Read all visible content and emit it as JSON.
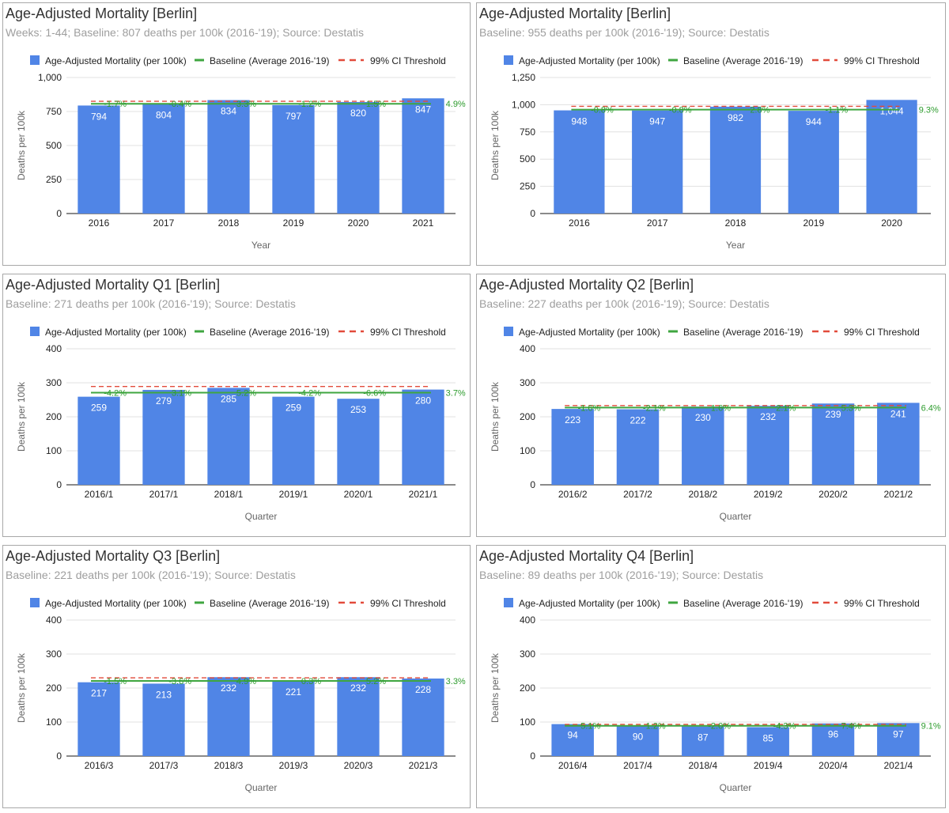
{
  "legend": {
    "series": "Age-Adjusted Mortality (per 100k)",
    "baseline": "Baseline (Average 2016-'19)",
    "ci": "99% CI Threshold"
  },
  "colors": {
    "bar": "#5085e6",
    "baseline": "#3fa640",
    "ci": "#e24b3b",
    "grid": "#e0e0e0",
    "axis": "#444444",
    "pct": "#2e9c2e"
  },
  "chart_data": [
    {
      "type": "bar",
      "title": "Age-Adjusted Mortality [Berlin]",
      "subtitle": "Weeks: 1-44; Baseline: 807 deaths per 100k (2016-'19); Source: Destatis",
      "xlabel": "Year",
      "ylabel": "Deaths per 100k",
      "ylim": [
        0,
        1000
      ],
      "yticks": [
        0,
        250,
        500,
        750,
        1000
      ],
      "ytick_labels": [
        "0",
        "250",
        "500",
        "750",
        "1,000"
      ],
      "categories": [
        "2016",
        "2017",
        "2018",
        "2019",
        "2020",
        "2021"
      ],
      "values": [
        794,
        804,
        834,
        797,
        820,
        847
      ],
      "value_labels": [
        "794",
        "804",
        "834",
        "797",
        "820",
        "847"
      ],
      "pct_labels": [
        "-1.7%",
        "-0.4%",
        "3.3%",
        "-1.2%",
        "1.5%",
        "4.9%"
      ],
      "baseline": 807,
      "ci_threshold": 825,
      "legend_position": "top"
    },
    {
      "type": "bar",
      "title": "Age-Adjusted Mortality [Berlin]",
      "subtitle": "Baseline: 955 deaths per 100k (2016-'19); Source: Destatis",
      "xlabel": "Year",
      "ylabel": "Deaths per 100k",
      "ylim": [
        0,
        1250
      ],
      "yticks": [
        0,
        250,
        500,
        750,
        1000,
        1250
      ],
      "ytick_labels": [
        "0",
        "250",
        "500",
        "750",
        "1,000",
        "1,250"
      ],
      "categories": [
        "2016",
        "2017",
        "2018",
        "2019",
        "2020"
      ],
      "values": [
        948,
        947,
        982,
        944,
        1044
      ],
      "value_labels": [
        "948",
        "947",
        "982",
        "944",
        "1,044"
      ],
      "pct_labels": [
        "-0.8%",
        "-0.8%",
        "2.8%",
        "-1.1%",
        "9.3%"
      ],
      "baseline": 955,
      "ci_threshold": 985,
      "legend_position": "top"
    },
    {
      "type": "bar",
      "title": "Age-Adjusted Mortality Q1 [Berlin]",
      "subtitle": "Baseline: 271 deaths per 100k (2016-'19); Source: Destatis",
      "xlabel": "Quarter",
      "ylabel": "Deaths per 100k",
      "ylim": [
        0,
        400
      ],
      "yticks": [
        0,
        100,
        200,
        300,
        400
      ],
      "ytick_labels": [
        "0",
        "100",
        "200",
        "300",
        "400"
      ],
      "categories": [
        "2016/1",
        "2017/1",
        "2018/1",
        "2019/1",
        "2020/1",
        "2021/1"
      ],
      "values": [
        259,
        279,
        285,
        259,
        253,
        280
      ],
      "value_labels": [
        "259",
        "279",
        "285",
        "259",
        "253",
        "280"
      ],
      "pct_labels": [
        "-4.2%",
        "3.1%",
        "5.2%",
        "-4.2%",
        "-6.6%",
        "3.7%"
      ],
      "baseline": 271,
      "ci_threshold": 289,
      "legend_position": "top"
    },
    {
      "type": "bar",
      "title": "Age-Adjusted Mortality Q2 [Berlin]",
      "subtitle": "Baseline: 227 deaths per 100k (2016-'19); Source: Destatis",
      "xlabel": "Quarter",
      "ylabel": "Deaths per 100k",
      "ylim": [
        0,
        400
      ],
      "yticks": [
        0,
        100,
        200,
        300,
        400
      ],
      "ytick_labels": [
        "0",
        "100",
        "200",
        "300",
        "400"
      ],
      "categories": [
        "2016/2",
        "2017/2",
        "2018/2",
        "2019/2",
        "2020/2",
        "2021/2"
      ],
      "values": [
        223,
        222,
        230,
        232,
        239,
        241
      ],
      "value_labels": [
        "223",
        "222",
        "230",
        "232",
        "239",
        "241"
      ],
      "pct_labels": [
        "-1.6%",
        "-2.1%",
        "1.6%",
        "2.1%",
        "5.3%",
        "6.4%"
      ],
      "baseline": 227,
      "ci_threshold": 233,
      "legend_position": "top"
    },
    {
      "type": "bar",
      "title": "Age-Adjusted Mortality Q3 [Berlin]",
      "subtitle": "Baseline: 221 deaths per 100k (2016-'19); Source: Destatis",
      "xlabel": "Quarter",
      "ylabel": "Deaths per 100k",
      "ylim": [
        0,
        400
      ],
      "yticks": [
        0,
        100,
        200,
        300,
        400
      ],
      "ytick_labels": [
        "0",
        "100",
        "200",
        "300",
        "400"
      ],
      "categories": [
        "2016/3",
        "2017/3",
        "2018/3",
        "2019/3",
        "2020/3",
        "2021/3"
      ],
      "values": [
        217,
        213,
        232,
        221,
        232,
        228
      ],
      "value_labels": [
        "217",
        "213",
        "232",
        "221",
        "232",
        "228"
      ],
      "pct_labels": [
        "-1.5%",
        "-3.6%",
        "4.9%",
        "0.3%",
        "5.2%",
        "3.3%"
      ],
      "baseline": 221,
      "ci_threshold": 230,
      "legend_position": "top"
    },
    {
      "type": "bar",
      "title": "Age-Adjusted Mortality Q4 [Berlin]",
      "subtitle": "Baseline: 89 deaths per 100k (2016-'19); Source: Destatis",
      "xlabel": "Quarter",
      "ylabel": "Deaths per 100k",
      "ylim": [
        0,
        400
      ],
      "yticks": [
        0,
        100,
        200,
        300,
        400
      ],
      "ytick_labels": [
        "0",
        "100",
        "200",
        "300",
        "400"
      ],
      "categories": [
        "2016/4",
        "2017/4",
        "2018/4",
        "2019/4",
        "2020/4",
        "2021/4"
      ],
      "values": [
        94,
        90,
        87,
        85,
        96,
        97
      ],
      "value_labels": [
        "94",
        "90",
        "87",
        "85",
        "96",
        "97"
      ],
      "pct_labels": [
        "5.1%",
        "1.2%",
        "-2.0%",
        "-4.3%",
        "7.4%",
        "9.1%"
      ],
      "baseline": 89,
      "ci_threshold": 93,
      "legend_position": "top"
    }
  ]
}
